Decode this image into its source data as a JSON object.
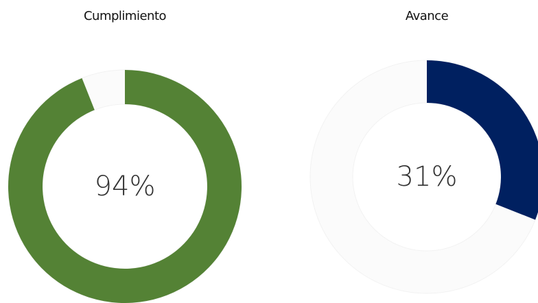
{
  "chart_data": [
    {
      "type": "donut",
      "title": "Cumplimiento",
      "values": [
        94
      ],
      "value_labels": [
        "94%"
      ],
      "color": "#548235"
    },
    {
      "type": "donut",
      "title": "Avance",
      "values": [
        31
      ],
      "value_labels": [
        "31%"
      ],
      "color": "#002060"
    }
  ]
}
